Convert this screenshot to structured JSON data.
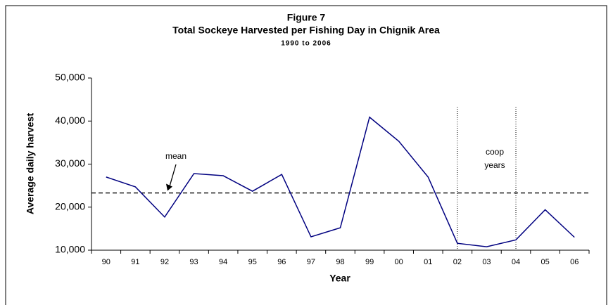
{
  "chart_data": {
    "type": "line",
    "title": "Figure 7",
    "subtitle": "Total Sockeye Harvested per Fishing Day in Chignik Area",
    "subsubtitle": "1990 to 2006",
    "x_label": "Year",
    "y_label": "Average daily harvest",
    "categories": [
      "90",
      "91",
      "92",
      "93",
      "94",
      "95",
      "96",
      "97",
      "98",
      "99",
      "00",
      "01",
      "02",
      "03",
      "04",
      "05",
      "06"
    ],
    "series": [
      {
        "name": "Average daily harvest",
        "color": "#000080",
        "values": [
          27000,
          24700,
          17700,
          27800,
          27300,
          23700,
          27600,
          13100,
          15200,
          40900,
          35300,
          27000,
          11600,
          10800,
          12400,
          19400,
          13000
        ]
      }
    ],
    "ylim": [
      10000,
      50000
    ],
    "yticks": [
      {
        "value": 10000,
        "label": "10,000"
      },
      {
        "value": 20000,
        "label": "20,000"
      },
      {
        "value": 30000,
        "label": "30,000"
      },
      {
        "value": 40000,
        "label": "40,000"
      },
      {
        "value": 50000,
        "label": "50,000"
      }
    ],
    "reference_line": {
      "value": 23300,
      "label": "mean"
    },
    "vlines": [
      "02",
      "04"
    ],
    "vlines_label": [
      "coop",
      "years"
    ]
  }
}
